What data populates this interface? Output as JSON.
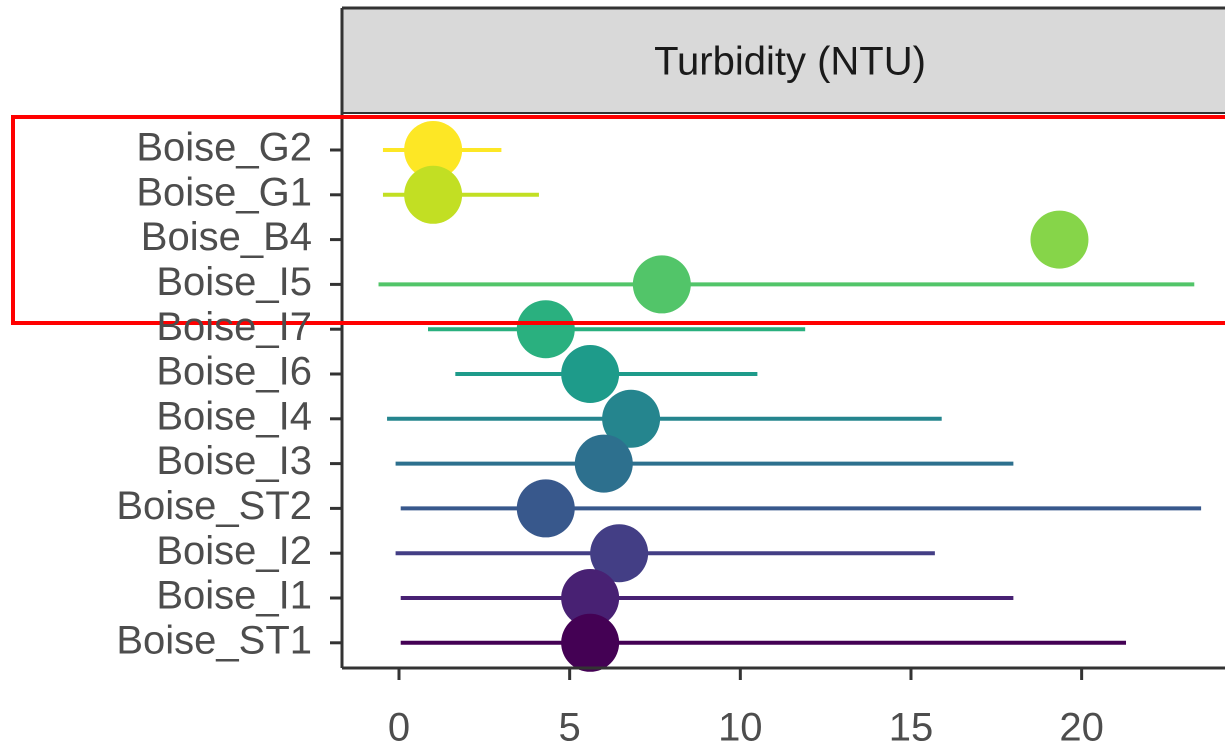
{
  "chart_data": {
    "type": "dot",
    "panel_title": "Turbidity (NTU)",
    "categories": [
      "Boise_G2",
      "Boise_G1",
      "Boise_B4",
      "Boise_I5",
      "Boise_I7",
      "Boise_I6",
      "Boise_I4",
      "Boise_I3",
      "Boise_ST2",
      "Boise_I2",
      "Boise_I1",
      "Boise_ST1"
    ],
    "values": [
      1.0,
      1.0,
      19.35,
      7.7,
      4.3,
      5.6,
      6.8,
      6.0,
      4.3,
      6.45,
      5.6,
      5.6
    ],
    "lower": [
      -0.47,
      -0.47,
      null,
      -0.6,
      0.85,
      1.65,
      -0.35,
      -0.1,
      0.05,
      -0.1,
      0.05,
      0.05
    ],
    "upper": [
      3.0,
      4.1,
      null,
      23.3,
      11.9,
      10.5,
      15.9,
      18.0,
      23.5,
      15.7,
      18.0,
      21.3
    ],
    "colors": [
      "#fde725",
      "#c2df23",
      "#86d549",
      "#52c569",
      "#2ab07f",
      "#1e9b8a",
      "#25858e",
      "#2d708e",
      "#38588c",
      "#433e85",
      "#482173",
      "#440154"
    ],
    "xlim": [
      -1.67,
      24.2
    ],
    "xticks": [
      0,
      5,
      10,
      15,
      20
    ]
  }
}
